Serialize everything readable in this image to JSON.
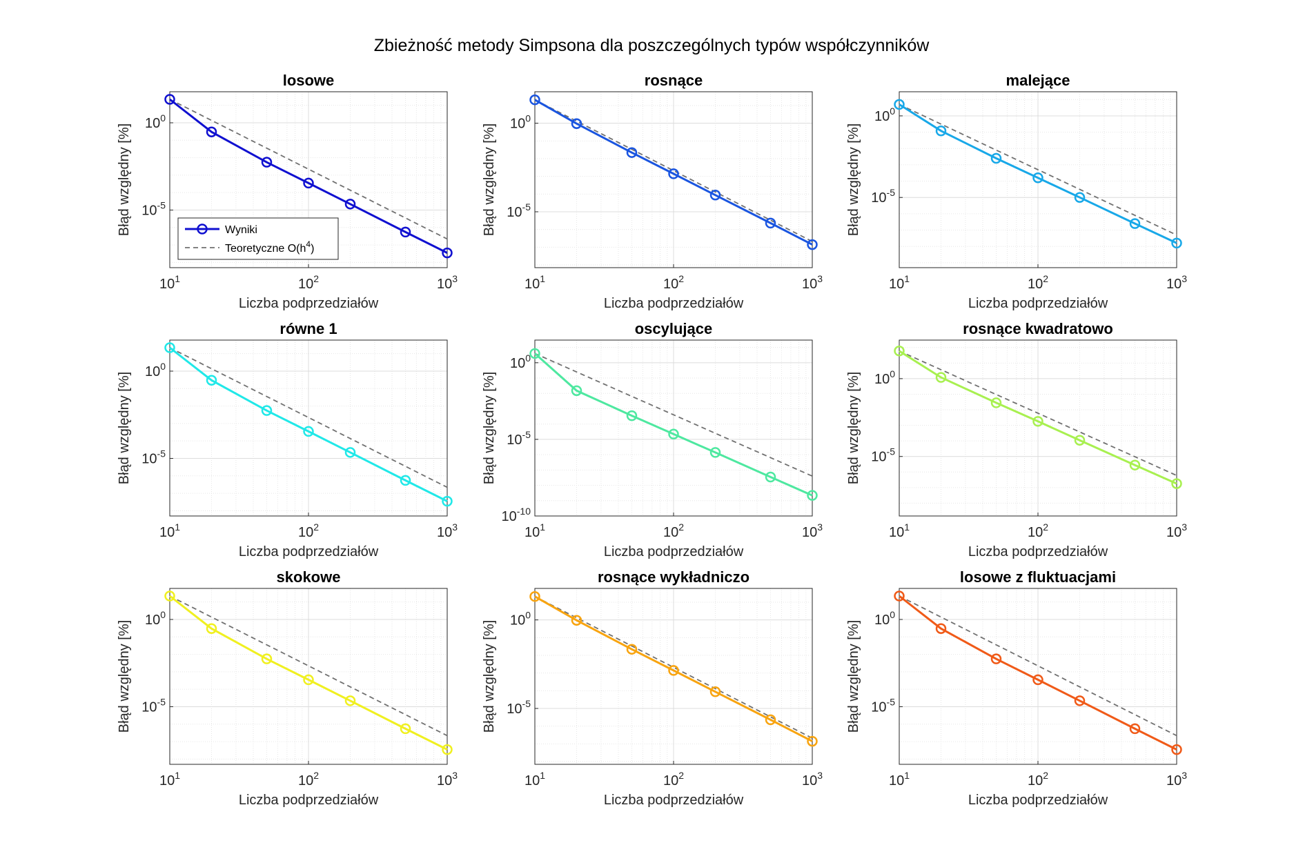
{
  "figure": {
    "suptitle": "Zbieżność metody Simpsona dla poszczególnych typów współczynników"
  },
  "legend": {
    "results_label": "Wyniki",
    "theory_label_main": "Teoretyczne O(h",
    "theory_label_exp": "4",
    "theory_label_close": ")"
  },
  "chart_data": [
    {
      "type": "line",
      "title": "losowe",
      "xlabel": "Liczba podprzedziałów",
      "ylabel": "Błąd względny [%]",
      "xscale": "log",
      "yscale": "log",
      "xlim": [
        10,
        1000
      ],
      "ylim": [
        5e-09,
        60
      ],
      "yticks": [
        {
          "base": "10",
          "exp": "-5",
          "value": 1e-05
        },
        {
          "base": "10",
          "exp": "0",
          "value": 1
        }
      ],
      "xticks": [
        {
          "base": "10",
          "exp": "1",
          "value": 10
        },
        {
          "base": "10",
          "exp": "2",
          "value": 100
        },
        {
          "base": "10",
          "exp": "3",
          "value": 1000
        }
      ],
      "x": [
        10,
        20,
        50,
        100,
        200,
        500,
        1000
      ],
      "series": [
        {
          "name": "Wyniki",
          "color": "#1010d0",
          "values": [
            22,
            0.3,
            0.0055,
            0.00035,
            2.2e-05,
            5.5e-07,
            3.5e-08
          ]
        },
        {
          "name": "Teoretyczne O(h4)",
          "color": "#707070",
          "style": "dashed",
          "values": [
            22,
            1.375,
            0.0352,
            0.0022,
            0.0001375,
            3.52e-06,
            2.2e-07
          ]
        }
      ],
      "legend_position": "bottom-left",
      "grid": true
    },
    {
      "type": "line",
      "title": "rosnące",
      "xlabel": "Liczba podprzedziałów",
      "ylabel": "Błąd względny [%]",
      "xscale": "log",
      "yscale": "log",
      "xlim": [
        10,
        1000
      ],
      "ylim": [
        7e-09,
        60
      ],
      "yticks": [
        {
          "base": "10",
          "exp": "-5",
          "value": 1e-05
        },
        {
          "base": "10",
          "exp": "0",
          "value": 1
        }
      ],
      "xticks": [
        {
          "base": "10",
          "exp": "1",
          "value": 10
        },
        {
          "base": "10",
          "exp": "2",
          "value": 100
        },
        {
          "base": "10",
          "exp": "3",
          "value": 1000
        }
      ],
      "x": [
        10,
        20,
        50,
        100,
        200,
        500,
        1000
      ],
      "series": [
        {
          "name": "Wyniki",
          "color": "#1a55e0",
          "values": [
            21,
            0.95,
            0.022,
            0.0014,
            8.8e-05,
            2.3e-06,
            1.4e-07
          ]
        },
        {
          "name": "Teoretyczne O(h4)",
          "color": "#707070",
          "style": "dashed",
          "values": [
            21,
            1.31,
            0.0336,
            0.0021,
            0.000131,
            3.36e-06,
            2.1e-07
          ]
        }
      ],
      "grid": true
    },
    {
      "type": "line",
      "title": "malejące",
      "xlabel": "Liczba podprzedziałów",
      "ylabel": "Błąd względny [%]",
      "xscale": "log",
      "yscale": "log",
      "xlim": [
        10,
        1000
      ],
      "ylim": [
        5e-10,
        30
      ],
      "yticks": [
        {
          "base": "10",
          "exp": "-5",
          "value": 1e-05
        },
        {
          "base": "10",
          "exp": "0",
          "value": 1
        }
      ],
      "xticks": [
        {
          "base": "10",
          "exp": "1",
          "value": 10
        },
        {
          "base": "10",
          "exp": "2",
          "value": 100
        },
        {
          "base": "10",
          "exp": "3",
          "value": 1000
        }
      ],
      "x": [
        10,
        20,
        50,
        100,
        200,
        500,
        1000
      ],
      "series": [
        {
          "name": "Wyniki",
          "color": "#18a8e8",
          "values": [
            5,
            0.12,
            0.0025,
            0.00016,
            1e-05,
            2.5e-07,
            1.6e-08
          ]
        },
        {
          "name": "Teoretyczne O(h4)",
          "color": "#707070",
          "style": "dashed",
          "values": [
            5,
            0.3125,
            0.008,
            0.0005,
            3.125e-05,
            8e-07,
            5e-08
          ]
        }
      ],
      "grid": true
    },
    {
      "type": "line",
      "title": "równe 1",
      "xlabel": "Liczba podprzedziałów",
      "ylabel": "Błąd względny [%]",
      "xscale": "log",
      "yscale": "log",
      "xlim": [
        10,
        1000
      ],
      "ylim": [
        5e-09,
        60
      ],
      "yticks": [
        {
          "base": "10",
          "exp": "-5",
          "value": 1e-05
        },
        {
          "base": "10",
          "exp": "0",
          "value": 1
        }
      ],
      "xticks": [
        {
          "base": "10",
          "exp": "1",
          "value": 10
        },
        {
          "base": "10",
          "exp": "2",
          "value": 100
        },
        {
          "base": "10",
          "exp": "3",
          "value": 1000
        }
      ],
      "x": [
        10,
        20,
        50,
        100,
        200,
        500,
        1000
      ],
      "series": [
        {
          "name": "Wyniki",
          "color": "#20e8e8",
          "values": [
            22,
            0.3,
            0.0055,
            0.00035,
            2.2e-05,
            5.5e-07,
            3.5e-08
          ]
        },
        {
          "name": "Teoretyczne O(h4)",
          "color": "#707070",
          "style": "dashed",
          "values": [
            22,
            1.375,
            0.0352,
            0.0022,
            0.0001375,
            3.52e-06,
            2.2e-07
          ]
        }
      ],
      "grid": true
    },
    {
      "type": "line",
      "title": "oscylujące",
      "xlabel": "Liczba podprzedziałów",
      "ylabel": "Błąd względny [%]",
      "xscale": "log",
      "yscale": "log",
      "xlim": [
        10,
        1000
      ],
      "ylim": [
        1e-10,
        30
      ],
      "yticks": [
        {
          "base": "10",
          "exp": "-10",
          "value": 1e-10
        },
        {
          "base": "10",
          "exp": "-5",
          "value": 1e-05
        },
        {
          "base": "10",
          "exp": "0",
          "value": 1
        }
      ],
      "xticks": [
        {
          "base": "10",
          "exp": "1",
          "value": 10
        },
        {
          "base": "10",
          "exp": "2",
          "value": 100
        },
        {
          "base": "10",
          "exp": "3",
          "value": 1000
        }
      ],
      "x": [
        10,
        20,
        50,
        100,
        200,
        500,
        1000
      ],
      "series": [
        {
          "name": "Wyniki",
          "color": "#4ee8a0",
          "values": [
            4,
            0.015,
            0.00035,
            2.2e-05,
            1.4e-06,
            3.5e-08,
            2.2e-09
          ]
        },
        {
          "name": "Teoretyczne O(h4)",
          "color": "#707070",
          "style": "dashed",
          "values": [
            4,
            0.25,
            0.0064,
            0.0004,
            2.5e-05,
            6.4e-07,
            4e-08
          ]
        }
      ],
      "grid": true
    },
    {
      "type": "line",
      "title": "rosnące kwadratowo",
      "xlabel": "Liczba podprzedziałów",
      "ylabel": "Błąd względny [%]",
      "xscale": "log",
      "yscale": "log",
      "xlim": [
        10,
        1000
      ],
      "ylim": [
        1.5e-09,
        300
      ],
      "yticks": [
        {
          "base": "10",
          "exp": "-5",
          "value": 1e-05
        },
        {
          "base": "10",
          "exp": "0",
          "value": 1
        }
      ],
      "xticks": [
        {
          "base": "10",
          "exp": "1",
          "value": 10
        },
        {
          "base": "10",
          "exp": "2",
          "value": 100
        },
        {
          "base": "10",
          "exp": "3",
          "value": 1000
        }
      ],
      "x": [
        10,
        20,
        50,
        100,
        200,
        500,
        1000
      ],
      "series": [
        {
          "name": "Wyniki",
          "color": "#a8f050",
          "values": [
            60,
            1.2,
            0.028,
            0.0018,
            0.00011,
            2.8e-06,
            1.8e-07
          ]
        },
        {
          "name": "Teoretyczne O(h4)",
          "color": "#707070",
          "style": "dashed",
          "values": [
            60,
            3.75,
            0.096,
            0.006,
            0.000375,
            9.6e-06,
            6e-07
          ]
        }
      ],
      "grid": true
    },
    {
      "type": "line",
      "title": "skokowe",
      "xlabel": "Liczba podprzedziałów",
      "ylabel": "Błąd względny [%]",
      "xscale": "log",
      "yscale": "log",
      "xlim": [
        10,
        1000
      ],
      "ylim": [
        5e-09,
        60
      ],
      "yticks": [
        {
          "base": "10",
          "exp": "-5",
          "value": 1e-05
        },
        {
          "base": "10",
          "exp": "0",
          "value": 1
        }
      ],
      "xticks": [
        {
          "base": "10",
          "exp": "1",
          "value": 10
        },
        {
          "base": "10",
          "exp": "2",
          "value": 100
        },
        {
          "base": "10",
          "exp": "3",
          "value": 1000
        }
      ],
      "x": [
        10,
        20,
        50,
        100,
        200,
        500,
        1000
      ],
      "series": [
        {
          "name": "Wyniki",
          "color": "#f0f020",
          "values": [
            22,
            0.3,
            0.0055,
            0.00035,
            2.2e-05,
            5.5e-07,
            3.5e-08
          ]
        },
        {
          "name": "Teoretyczne O(h4)",
          "color": "#707070",
          "style": "dashed",
          "values": [
            22,
            1.375,
            0.0352,
            0.0022,
            0.0001375,
            3.52e-06,
            2.2e-07
          ]
        }
      ],
      "grid": true
    },
    {
      "type": "line",
      "title": "rosnące wykładniczo",
      "xlabel": "Liczba podprzedziałów",
      "ylabel": "Błąd względny [%]",
      "xscale": "log",
      "yscale": "log",
      "xlim": [
        10,
        1000
      ],
      "ylim": [
        7e-09,
        60
      ],
      "yticks": [
        {
          "base": "10",
          "exp": "-5",
          "value": 1e-05
        },
        {
          "base": "10",
          "exp": "0",
          "value": 1
        }
      ],
      "xticks": [
        {
          "base": "10",
          "exp": "1",
          "value": 10
        },
        {
          "base": "10",
          "exp": "2",
          "value": 100
        },
        {
          "base": "10",
          "exp": "3",
          "value": 1000
        }
      ],
      "x": [
        10,
        20,
        50,
        100,
        200,
        500,
        1000
      ],
      "series": [
        {
          "name": "Wyniki",
          "color": "#f8a410",
          "values": [
            21,
            0.95,
            0.022,
            0.0014,
            8.8e-05,
            2.3e-06,
            1.4e-07
          ]
        },
        {
          "name": "Teoretyczne O(h4)",
          "color": "#707070",
          "style": "dashed",
          "values": [
            21,
            1.31,
            0.0336,
            0.0021,
            0.000131,
            3.36e-06,
            2.1e-07
          ]
        }
      ],
      "grid": true
    },
    {
      "type": "line",
      "title": "losowe z fluktuacjami",
      "xlabel": "Liczba podprzedziałów",
      "ylabel": "Błąd względny [%]",
      "xscale": "log",
      "yscale": "log",
      "xlim": [
        10,
        1000
      ],
      "ylim": [
        5e-09,
        60
      ],
      "yticks": [
        {
          "base": "10",
          "exp": "-5",
          "value": 1e-05
        },
        {
          "base": "10",
          "exp": "0",
          "value": 1
        }
      ],
      "xticks": [
        {
          "base": "10",
          "exp": "1",
          "value": 10
        },
        {
          "base": "10",
          "exp": "2",
          "value": 100
        },
        {
          "base": "10",
          "exp": "3",
          "value": 1000
        }
      ],
      "x": [
        10,
        20,
        50,
        100,
        200,
        500,
        1000
      ],
      "series": [
        {
          "name": "Wyniki",
          "color": "#f05a18",
          "values": [
            22,
            0.3,
            0.0055,
            0.00035,
            2.2e-05,
            5.5e-07,
            3.5e-08
          ]
        },
        {
          "name": "Teoretyczne O(h4)",
          "color": "#707070",
          "style": "dashed",
          "values": [
            22,
            1.375,
            0.0352,
            0.0022,
            0.0001375,
            3.52e-06,
            2.2e-07
          ]
        }
      ],
      "grid": true
    }
  ]
}
